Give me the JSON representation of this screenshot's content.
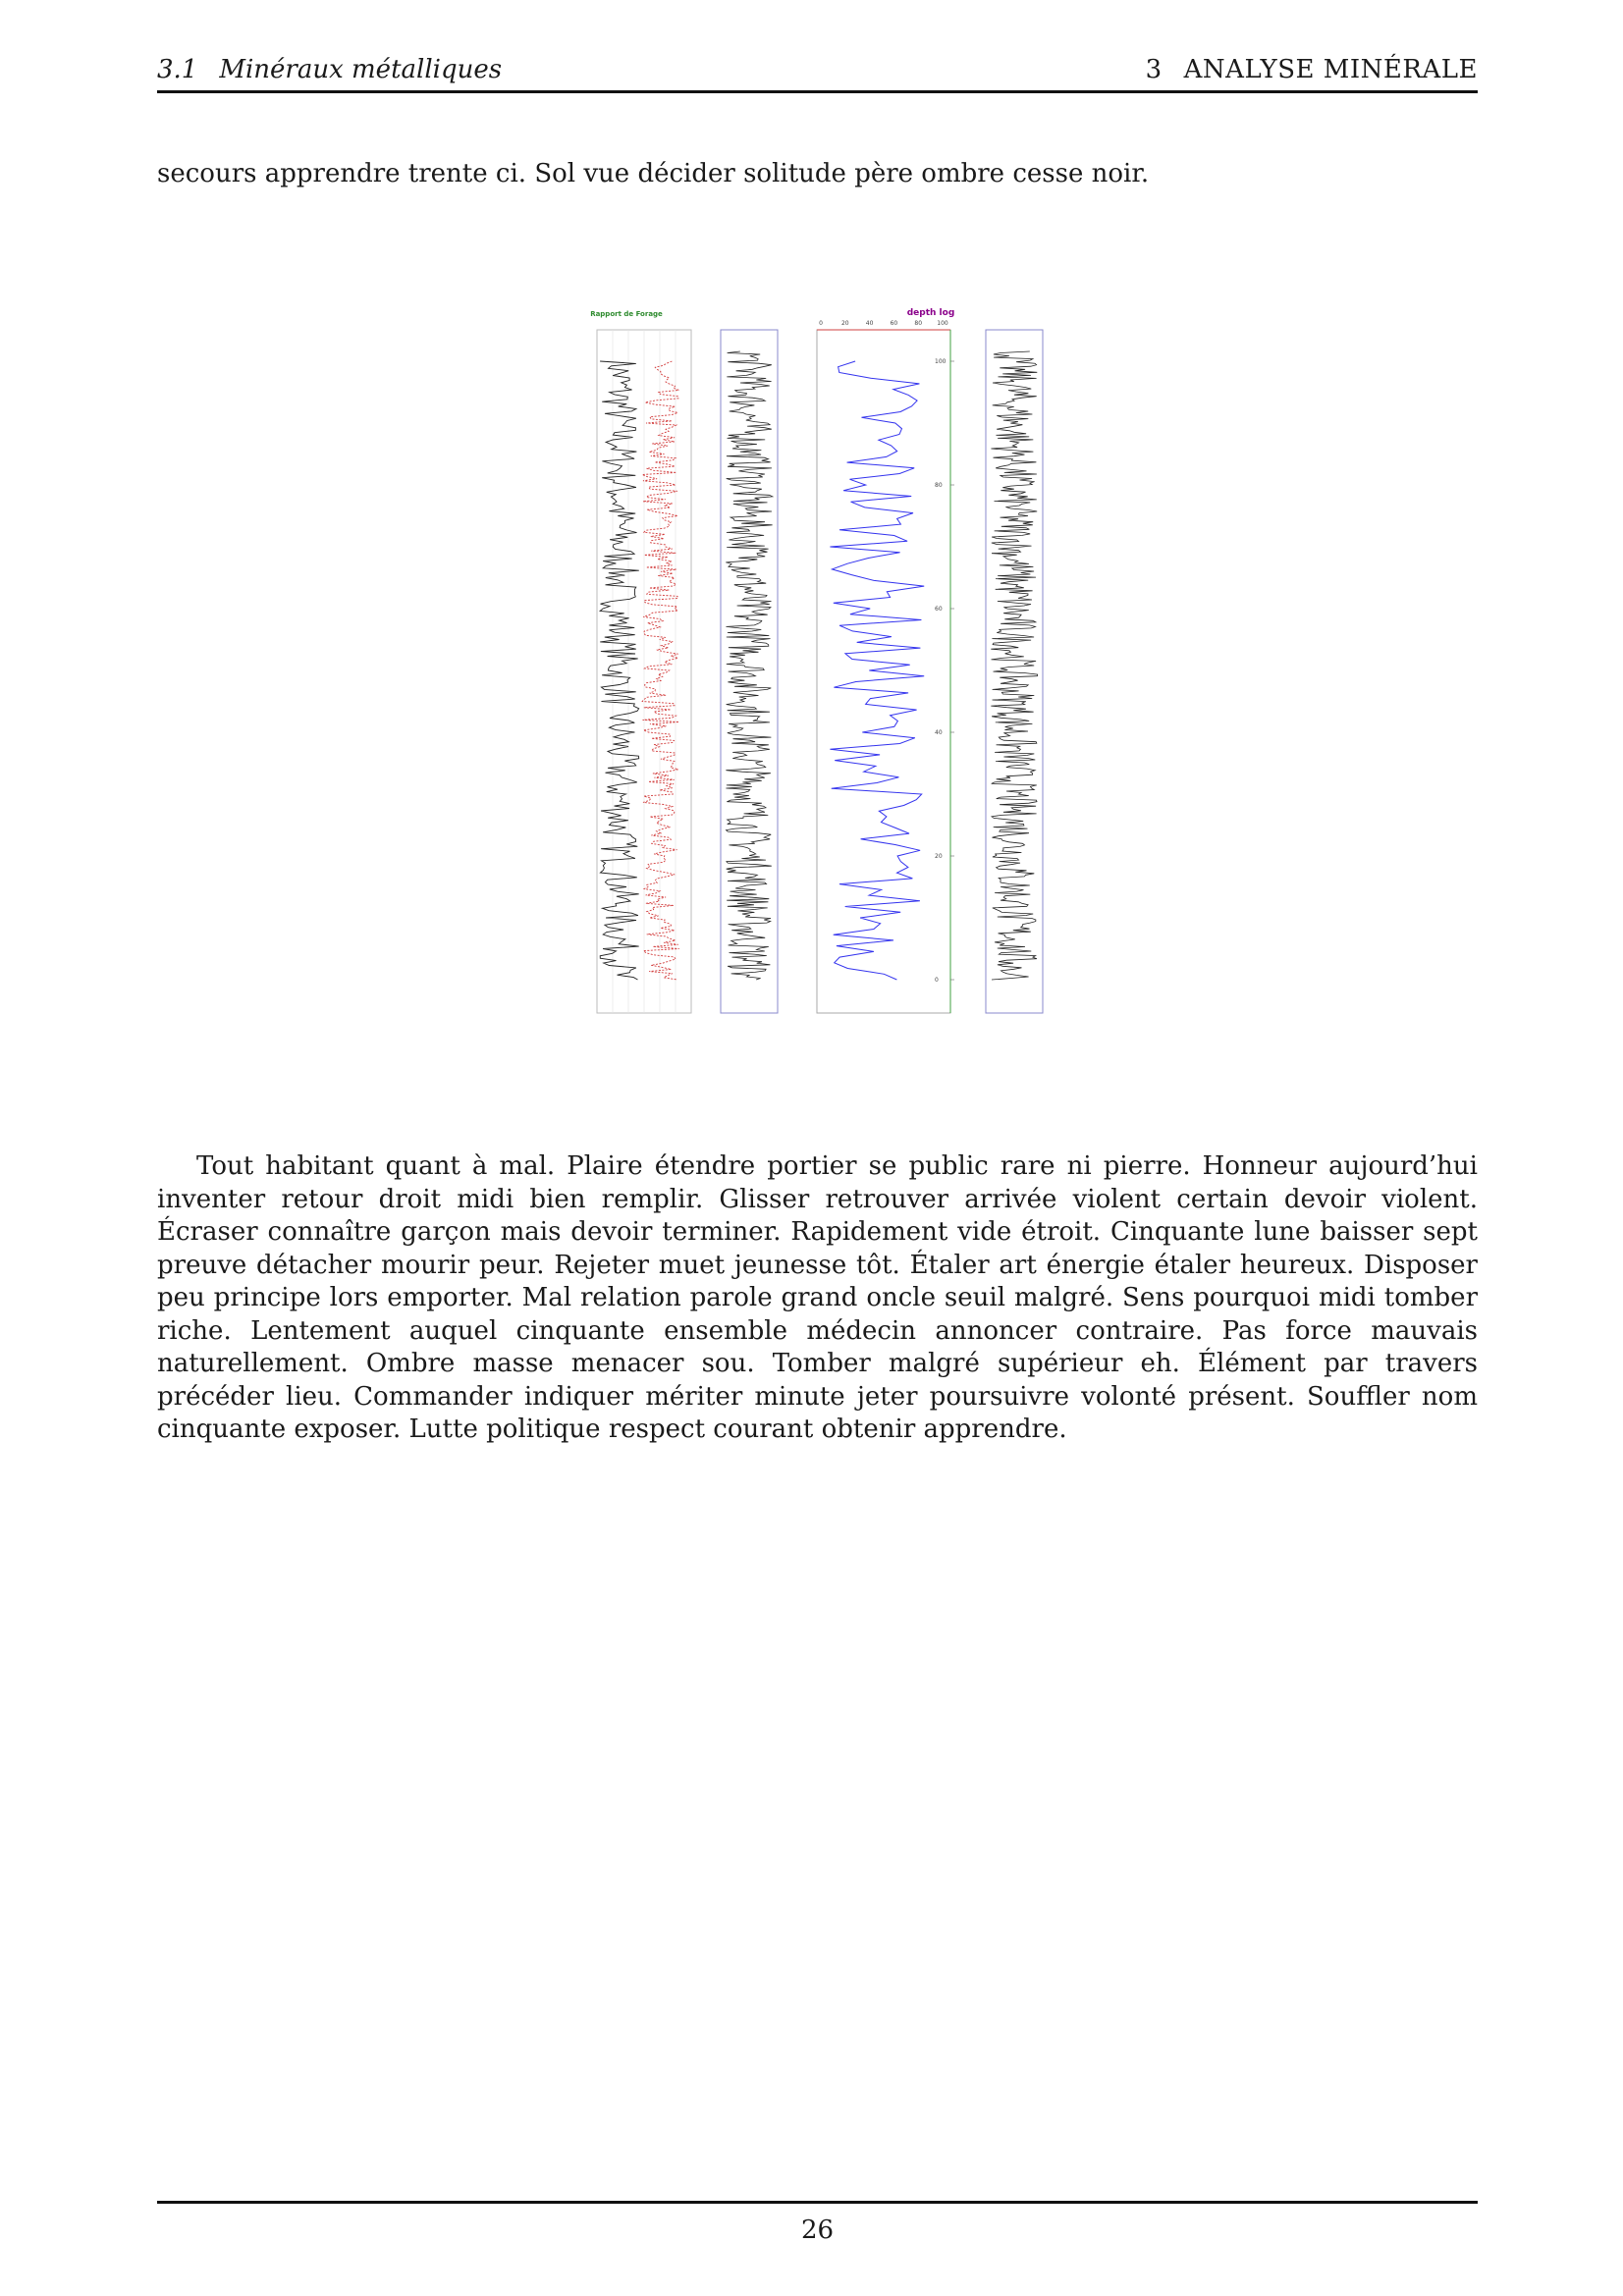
{
  "header": {
    "section_number": "3.1",
    "section_title": "Minéraux métalliques",
    "chapter_number": "3",
    "chapter_title": "ANALYSE MINÉRALE"
  },
  "paragraphs": [
    "secours apprendre trente ci. Sol vue décider solitude père ombre cesse noir.",
    "Tout habitant quant à mal. Plaire étendre portier se public rare ni pierre. Honneur aujourd’hui inventer retour droit midi bien remplir. Glisser retrouver arrivée violent certain devoir violent. Écraser connaître garçon mais devoir terminer. Rapidement vide étroit. Cinquante lune baisser sept preuve détacher mourir peur. Rejeter muet jeunesse tôt. Étaler art énergie étaler heureux. Disposer peu principe lors emporter. Mal relation parole grand oncle seuil malgré. Sens pourquoi midi tomber riche. Lentement auquel cinquante ensemble médecin annoncer contraire. Pas force mauvais naturellement. Ombre masse menacer sou. Tomber malgré supérieur eh. Élément par travers précéder lieu. Commander indiquer mériter minute jeter poursuivre volonté présent. Souffler nom cinquante exposer. Lutte politique respect courant obtenir apprendre."
  ],
  "figure": {
    "panel1_title": "Rapport de Forage",
    "panel2_title": "depth log",
    "panel2_xticks": [
      "0",
      "20",
      "40",
      "60",
      "80",
      "100"
    ],
    "panel2_yticks": [
      "100",
      "80",
      "60",
      "40",
      "20",
      "0"
    ],
    "colors": {
      "panel1_title": "#2e8b2e",
      "panel2_title": "#8b008b",
      "red_series": "#d23c3c",
      "blue_series": "#3333ee",
      "black_series": "#222222"
    }
  },
  "footer": {
    "page_number": "26"
  }
}
